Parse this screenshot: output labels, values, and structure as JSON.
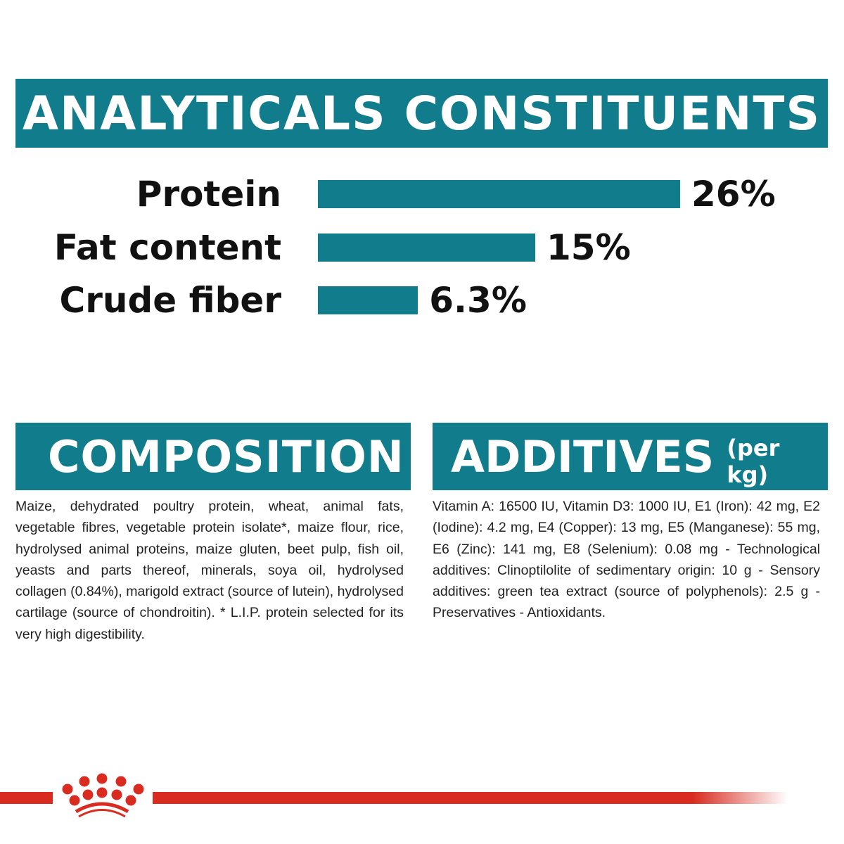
{
  "header": {
    "title": "ANALYTICALS CONSTITUENTS"
  },
  "chart_data": {
    "type": "bar",
    "orientation": "horizontal",
    "categories": [
      "Protein",
      "Fat content",
      "Crude fiber"
    ],
    "values": [
      26,
      15,
      6.3
    ],
    "value_labels": [
      "26%",
      "15%",
      "6.3%"
    ],
    "unit": "%",
    "color": "#107c8c"
  },
  "composition": {
    "title": "COMPOSITION",
    "text": "Maize, dehydrated poultry protein, wheat, animal fats, vegetable fibres, vegetable protein isolate*, maize flour, rice, hydrolysed animal proteins, maize gluten, beet pulp, fish oil, yeasts and parts thereof, minerals, soya oil, hydrolysed collagen (0.84%), marigold extract (source of lutein), hydrolysed cartilage (source of chondroitin). * L.I.P. protein selected for its very high digestibility."
  },
  "additives": {
    "title": "ADDITIVES",
    "subtitle": "(per kg)",
    "text": "Vitamin A: 16500 IU, Vitamin D3: 1000 IU, E1 (Iron): 42 mg, E2 (Iodine): 4.2 mg, E4 (Copper): 13 mg, E5 (Manganese): 55 mg, E6 (Zinc): 141 mg, E8 (Selenium): 0.08 mg - Technological additives: Clinoptilolite of sedimentary origin: 10 g - Sensory additives: green tea extract (source of polyphenols): 2.5 g - Preservatives - Antioxidants."
  },
  "colors": {
    "accent": "#107c8c",
    "brand_red": "#d92b1f"
  },
  "logo": {
    "icon": "royal-canin-crown-logo"
  }
}
